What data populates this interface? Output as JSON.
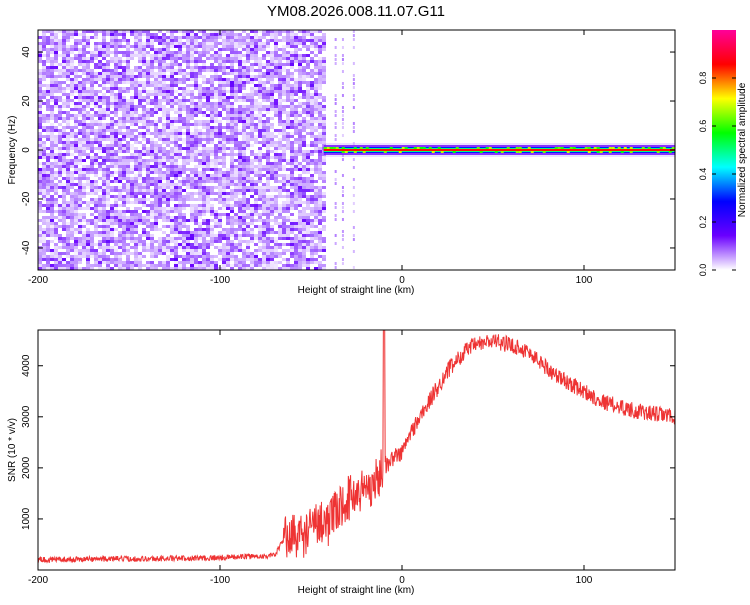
{
  "page": {
    "title": "YM08.2026.008.11.07.G11"
  },
  "chart_data": [
    {
      "type": "heatmap",
      "xlabel": "Height of straight line (km)",
      "ylabel": "Frequency (Hz)",
      "xlim": [
        -200,
        150
      ],
      "ylim": [
        -49,
        49
      ],
      "xticks": [
        -200,
        -100,
        0,
        100
      ],
      "yticks": [
        -40,
        -20,
        0,
        20,
        40
      ],
      "colorbar": {
        "label": "Normalized spectral amplitude",
        "range": [
          0,
          1
        ],
        "ticks": [
          0.0,
          0.2,
          0.4,
          0.6,
          0.8
        ],
        "colormap": [
          "#ffffff",
          "#6a00ff",
          "#0000ff",
          "#00ffff",
          "#00ff00",
          "#ffff00",
          "#ff0000",
          "#ff0099"
        ]
      },
      "noise_region": {
        "x_start": -200,
        "x_end": -43
      },
      "carrier": {
        "x_start": -43,
        "x_end": 150,
        "frequency": 0
      }
    },
    {
      "type": "line",
      "xlabel": "Height of straight line (km)",
      "ylabel": "SNR (10 * v/v)",
      "xlim": [
        -200,
        150
      ],
      "ylim": [
        0,
        4700
      ],
      "xticks": [
        -200,
        -100,
        0,
        100
      ],
      "yticks": [
        1000,
        2000,
        3000,
        4000
      ],
      "line_color": "#ee3333",
      "series": [
        {
          "x": [
            -200,
            -180,
            -160,
            -140,
            -120,
            -100,
            -90,
            -80,
            -70,
            -65,
            -60,
            -55,
            -50,
            -45,
            -40,
            -35,
            -30,
            -25,
            -20,
            -15,
            -12,
            -10,
            -8,
            -5,
            0,
            5,
            10,
            15,
            20,
            25,
            30,
            35,
            40,
            45,
            50,
            55,
            60,
            65,
            70,
            75,
            80,
            85,
            90,
            95,
            100,
            105,
            110,
            115,
            120,
            130,
            140,
            150
          ],
          "y": [
            200,
            210,
            220,
            220,
            230,
            240,
            260,
            270,
            280,
            600,
            700,
            650,
            800,
            1000,
            900,
            1200,
            1400,
            1500,
            1600,
            1700,
            1900,
            2100,
            2050,
            2200,
            2300,
            2700,
            3000,
            3300,
            3600,
            3900,
            4100,
            4300,
            4400,
            4450,
            4480,
            4450,
            4400,
            4350,
            4250,
            4100,
            3950,
            3800,
            3700,
            3600,
            3500,
            3400,
            3300,
            3250,
            3200,
            3100,
            3050,
            3000
          ]
        }
      ]
    }
  ]
}
